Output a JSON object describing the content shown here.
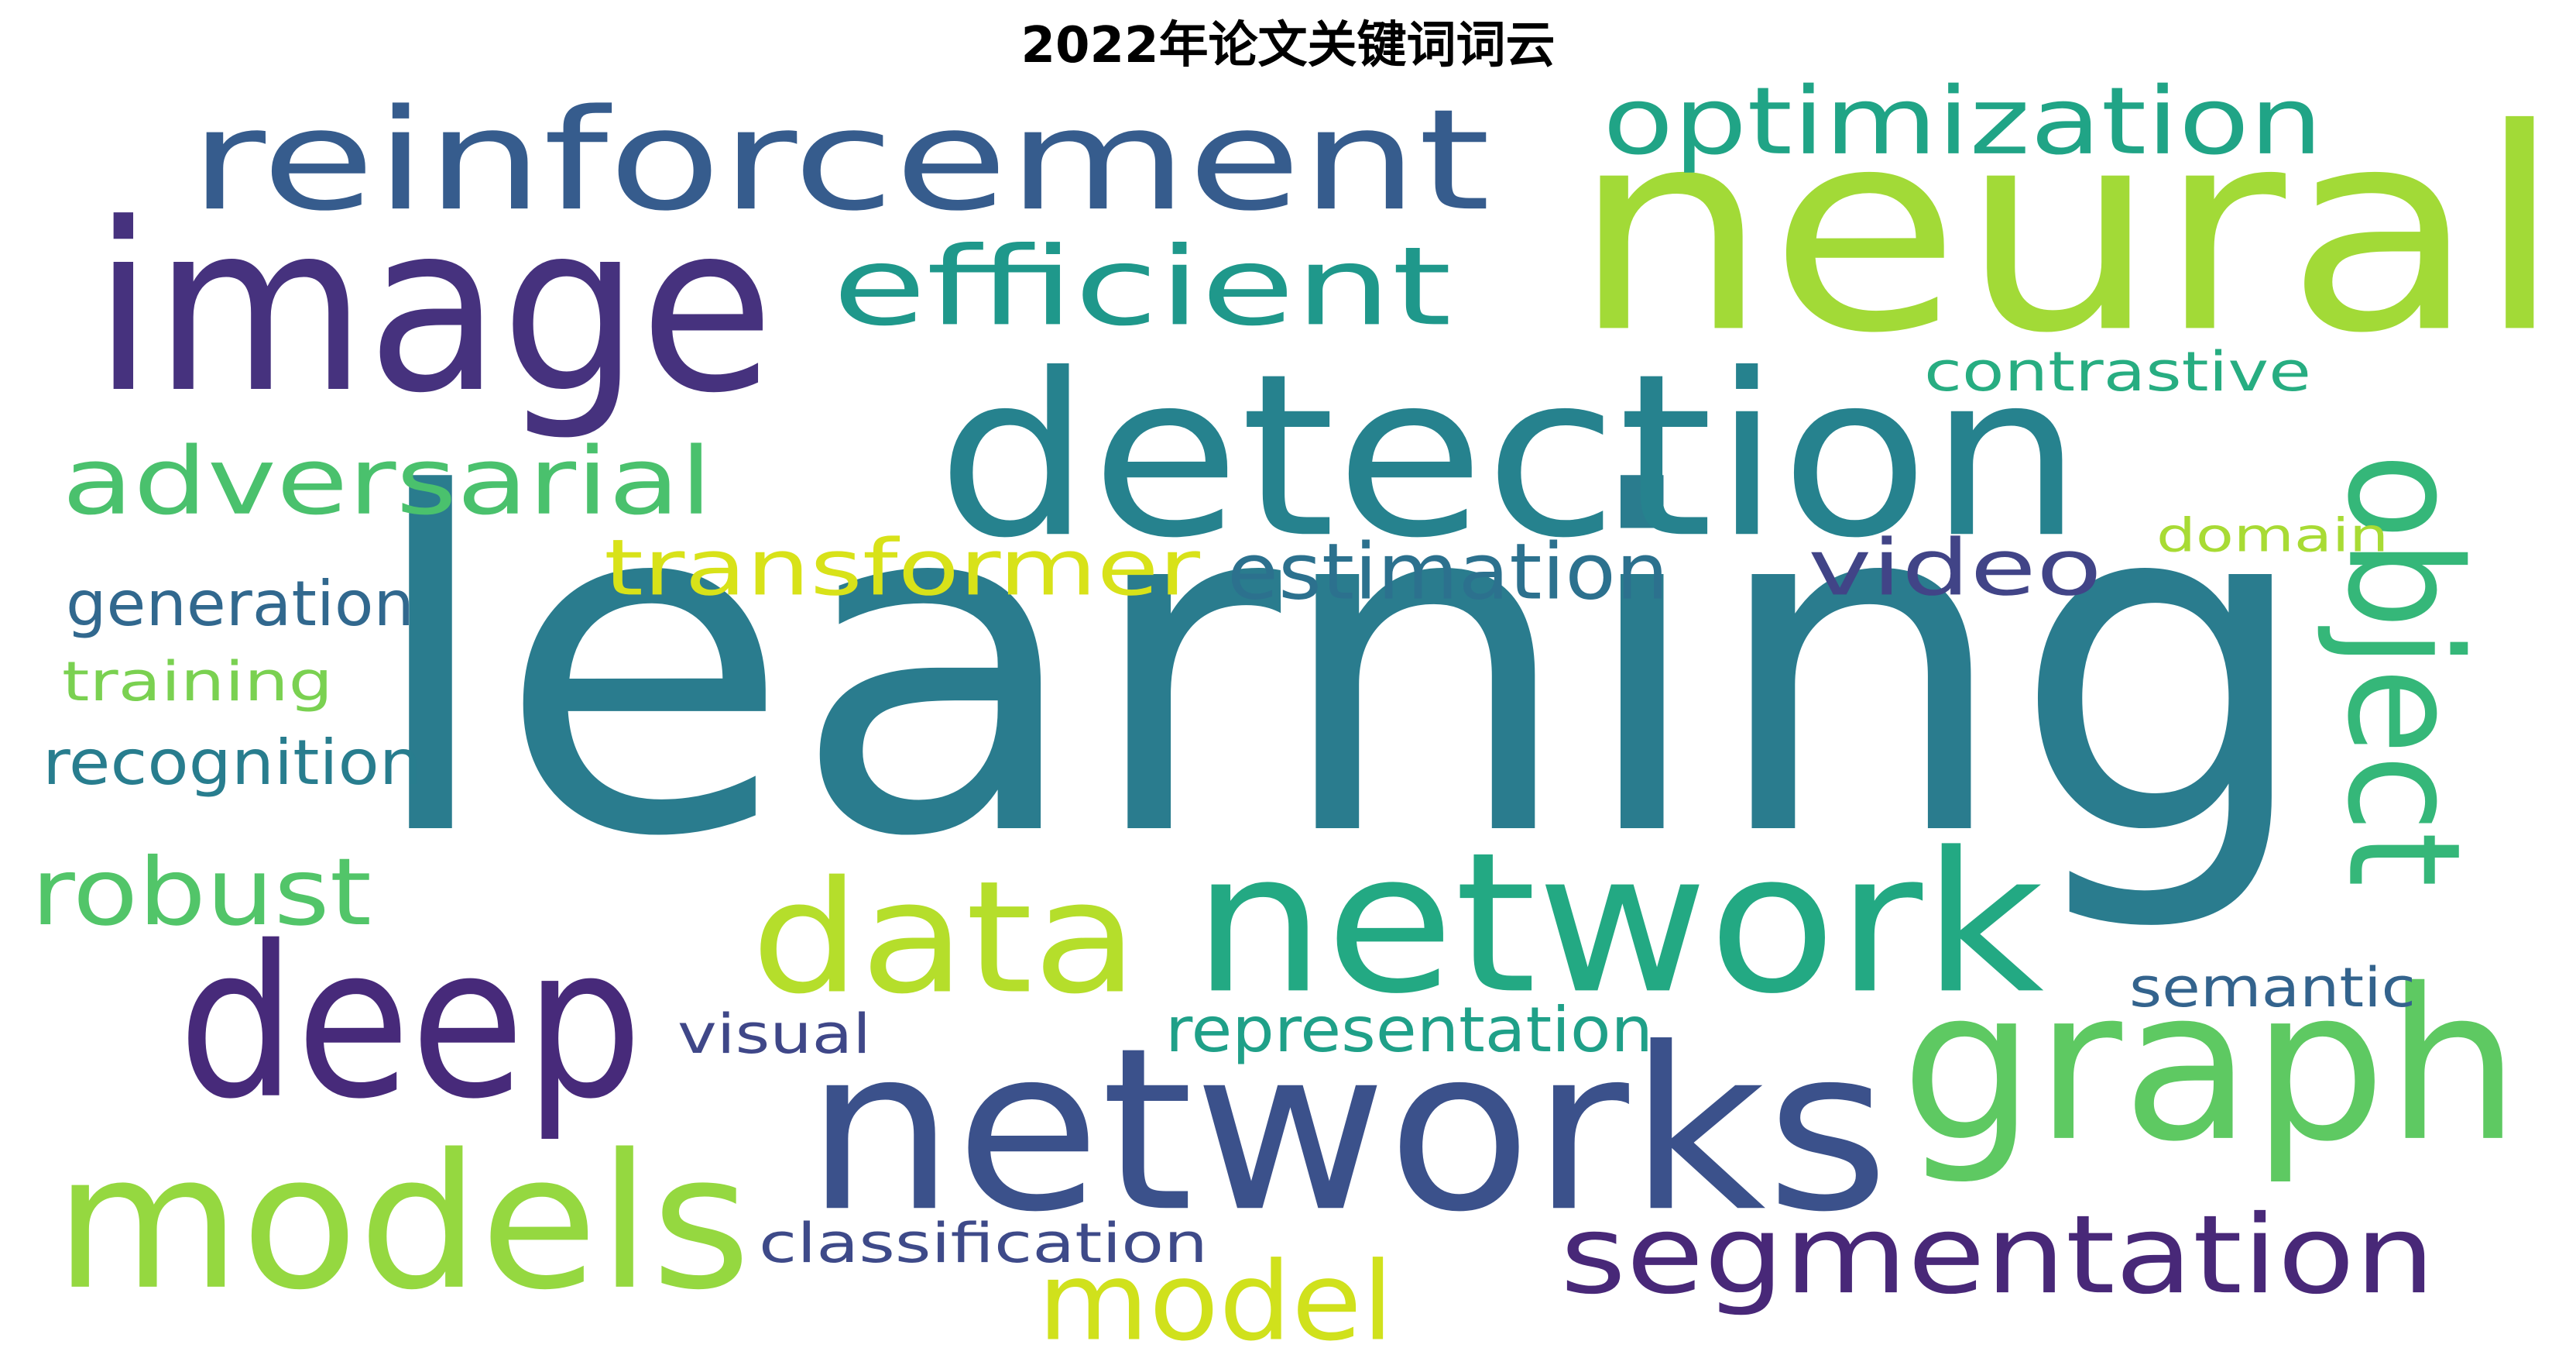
{
  "title": "2022年论文关键词词云",
  "words": [
    {
      "text": "learning",
      "color": "#2a7c8e",
      "rotated": false
    },
    {
      "text": "neural",
      "color": "#a2da37",
      "rotated": false
    },
    {
      "text": "image",
      "color": "#46327e",
      "rotated": false
    },
    {
      "text": "networks",
      "color": "#3b518b",
      "rotated": false
    },
    {
      "text": "detection",
      "color": "#26828e",
      "rotated": false
    },
    {
      "text": "reinforcement",
      "color": "#365c8d",
      "rotated": false
    },
    {
      "text": "network",
      "color": "#23a983",
      "rotated": false
    },
    {
      "text": "deep",
      "color": "#472a7a",
      "rotated": false
    },
    {
      "text": "models",
      "color": "#95d840",
      "rotated": false
    },
    {
      "text": "graph",
      "color": "#5ec962",
      "rotated": false
    },
    {
      "text": "object",
      "color": "#35b779",
      "rotated": true
    },
    {
      "text": "data",
      "color": "#b5de2b",
      "rotated": false
    },
    {
      "text": "efficient",
      "color": "#1f988b",
      "rotated": false
    },
    {
      "text": "optimization",
      "color": "#20a486",
      "rotated": false
    },
    {
      "text": "segmentation",
      "color": "#482878",
      "rotated": false
    },
    {
      "text": "adversarial",
      "color": "#4ac16d",
      "rotated": false
    },
    {
      "text": "model",
      "color": "#d0e11c",
      "rotated": false
    },
    {
      "text": "robust",
      "color": "#52c569",
      "rotated": false
    },
    {
      "text": "transformer",
      "color": "#d8e219",
      "rotated": false
    },
    {
      "text": "video",
      "color": "#414487",
      "rotated": false
    },
    {
      "text": "estimation",
      "color": "#2c718e",
      "rotated": false
    },
    {
      "text": "generation",
      "color": "#31688e",
      "rotated": false
    },
    {
      "text": "representation",
      "color": "#1fa088",
      "rotated": false
    },
    {
      "text": "recognition",
      "color": "#287d8e",
      "rotated": false
    },
    {
      "text": "training",
      "color": "#7ad151",
      "rotated": false
    },
    {
      "text": "contrastive",
      "color": "#27ad81",
      "rotated": false
    },
    {
      "text": "semantic",
      "color": "#33638d",
      "rotated": false
    },
    {
      "text": "classification",
      "color": "#3e4a89",
      "rotated": false
    },
    {
      "text": "visual",
      "color": "#3f4788",
      "rotated": false
    },
    {
      "text": "domain",
      "color": "#a8db34",
      "rotated": false
    }
  ]
}
